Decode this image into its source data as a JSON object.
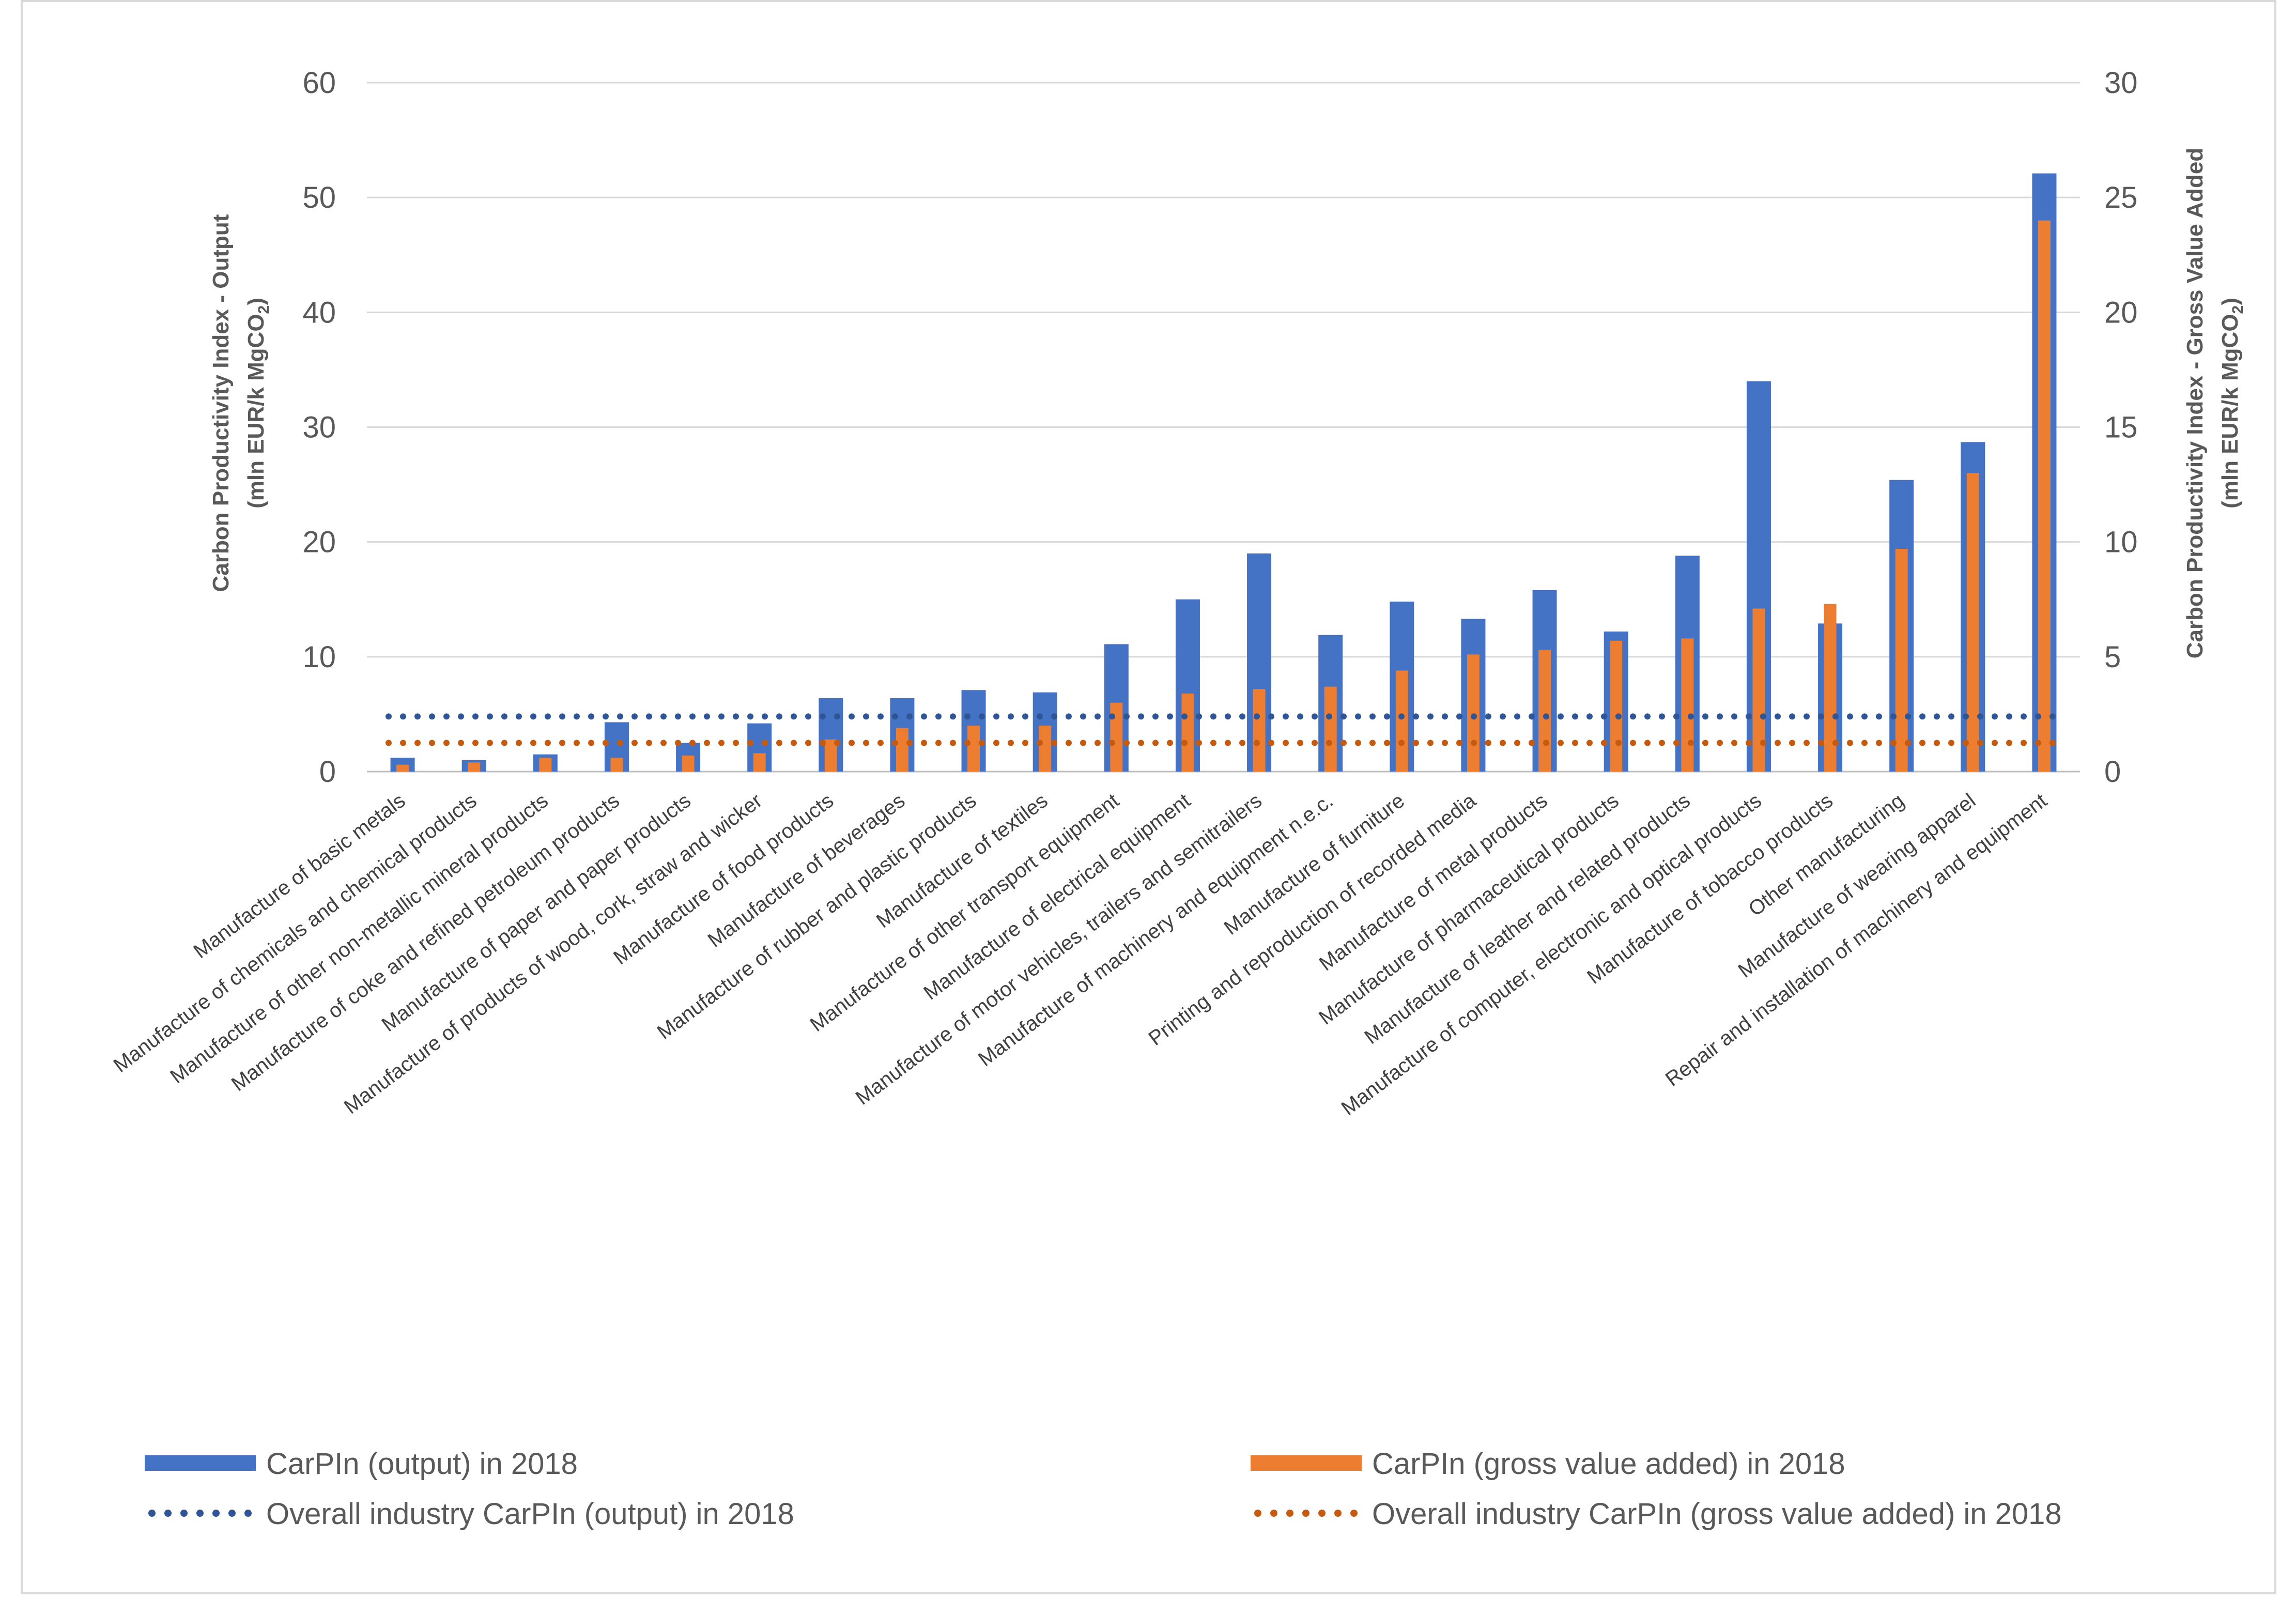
{
  "chart_data": {
    "type": "bar",
    "categories": [
      "Manufacture of basic metals",
      "Manufacture of  chemicals and chemical products",
      "Manufacture of other non-metallic mineral products",
      "Manufacture of coke and refined petroleum products",
      "Manufacture of paper and paper products",
      "Manufacture of products of wood, cork, straw and wicker",
      "Manufacture of food products",
      "Manufacture of beverages",
      "Manufacture of  rubber and plastic products",
      "Manufacture of  textiles",
      "Manufacture of other transport equipment",
      "Manufacture of electrical  equipment",
      "Manufacture of motor vehicles, trailers and semitrailers",
      "Manufacture of machinery and equipment  n.e.c.",
      "Manufacture of furniture",
      "Printing and reproduction of recorded media",
      "Manufacture of  metal products",
      "Manufacture of  pharmaceutical products",
      "Manufacture of leather and related products",
      "Manufacture of computer, electronic and optical products",
      "Manufacture of  tobacco products",
      "Other manufacturing",
      "Manufacture of wearing apparel",
      "Repair and installation of machinery and equipment"
    ],
    "series": [
      {
        "name": "CarPIn (output) in 2018",
        "axis": "left",
        "color": "#4472C4",
        "values": [
          1.2,
          1.0,
          1.5,
          4.3,
          2.5,
          4.2,
          6.4,
          6.4,
          7.1,
          6.9,
          11.1,
          15.0,
          19.0,
          11.9,
          14.8,
          13.3,
          15.8,
          12.2,
          18.8,
          34.0,
          12.9,
          25.4,
          28.7,
          52.1
        ]
      },
      {
        "name": "CarPIn (gross value added) in 2018",
        "axis": "right",
        "color": "#ED7D31",
        "values": [
          0.3,
          0.4,
          0.6,
          0.6,
          0.7,
          0.8,
          1.4,
          1.9,
          2.0,
          2.0,
          3.0,
          3.4,
          3.6,
          3.7,
          4.4,
          5.1,
          5.3,
          5.7,
          5.8,
          7.1,
          7.3,
          9.7,
          13.0,
          24.0
        ]
      }
    ],
    "reference_lines": [
      {
        "name": "Overall industry CarPIn (output) in 2018",
        "axis": "left",
        "value": 4.8,
        "color": "#2F5597",
        "style": "dotted"
      },
      {
        "name": "Overall industry CarPIn (gross value added) in 2018",
        "axis": "right",
        "value": 1.25,
        "color": "#C55A11",
        "style": "dotted"
      }
    ],
    "y_left": {
      "label_line1": "Carbon Productivity Index - Output",
      "label_line2_prefix": "(mln EUR/k MgCO",
      "label_line2_sub": "2",
      "label_line2_suffix": ")",
      "ylim": [
        0,
        60
      ],
      "ticks": [
        "0",
        "10",
        "20",
        "30",
        "40",
        "50",
        "60"
      ]
    },
    "y_right": {
      "label_line1": "Carbon Productivity Index - Gross Value Added",
      "label_line2_prefix": "(mln EUR/k MgCO",
      "label_line2_sub": "2",
      "label_line2_suffix": ")",
      "ylim": [
        0,
        30
      ],
      "ticks": [
        "0",
        "5",
        "10",
        "15",
        "20",
        "25",
        "30"
      ]
    },
    "grid": true,
    "legend_placement": "bottom",
    "legend": [
      {
        "label": "CarPIn (output) in 2018",
        "kind": "bar",
        "color": "#4472C4"
      },
      {
        "label": "CarPIn (gross value added) in 2018",
        "kind": "bar",
        "color": "#ED7D31"
      },
      {
        "label": "Overall industry CarPIn (output) in 2018",
        "kind": "dots",
        "color": "#2F5597"
      },
      {
        "label": "Overall industry CarPIn (gross value added) in 2018",
        "kind": "dots",
        "color": "#C55A11"
      }
    ]
  }
}
